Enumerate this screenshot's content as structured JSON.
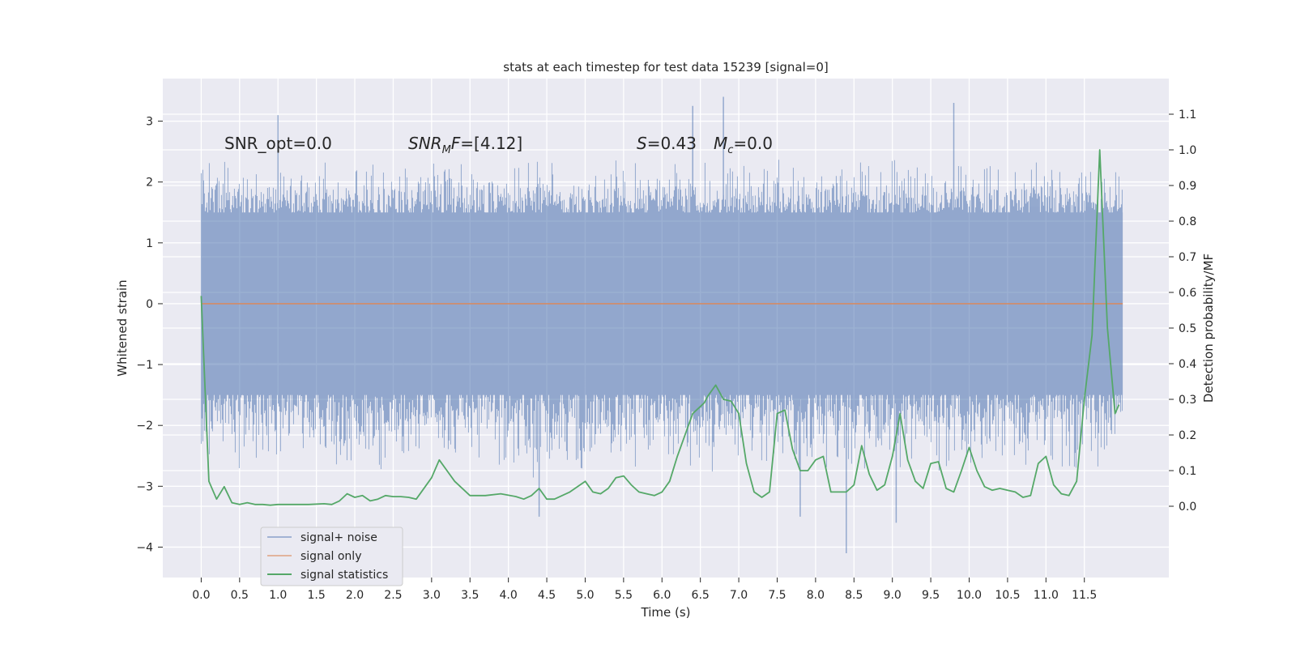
{
  "chart_data": {
    "type": "line",
    "title": "stats at each timestep for test data 15239 [signal=0]",
    "xlabel": "Time (s)",
    "ylabel": "Whitened strain",
    "ylabel_right": "Detection probability/MF",
    "xlim": [
      -0.5,
      12.6
    ],
    "ylim": [
      -4.5,
      3.7
    ],
    "ylim_right": [
      -0.2,
      1.2
    ],
    "x_ticks": [
      "0.0",
      "0.5",
      "1.0",
      "1.5",
      "2.0",
      "2.5",
      "3.0",
      "3.5",
      "4.0",
      "4.5",
      "5.0",
      "5.5",
      "6.0",
      "6.5",
      "7.0",
      "7.5",
      "8.0",
      "8.5",
      "9.0",
      "9.5",
      "10.0",
      "10.5",
      "11.0",
      "11.5"
    ],
    "y_ticks": [
      "3",
      "2",
      "1",
      "0",
      "−1",
      "−2",
      "−3",
      "−4"
    ],
    "y_ticks_right": [
      "1.1",
      "1.0",
      "0.9",
      "0.8",
      "0.7",
      "0.6",
      "0.5",
      "0.4",
      "0.3",
      "0.2",
      "0.1",
      "0.0"
    ],
    "grid": true,
    "legend_position": "lower-left",
    "annotations": [
      {
        "text": "SNR_opt=0.0",
        "italic": false
      },
      {
        "text": "SNR_MF=[4.12]",
        "italic": true
      },
      {
        "text": "S=0.43",
        "italic": false
      },
      {
        "text": "M_c=0.0",
        "italic": false
      }
    ],
    "series": [
      {
        "name": "signal+ noise",
        "color": "#4c72b0",
        "axis": "left",
        "style": "dense noise band",
        "x_range": [
          0.0,
          12.0
        ],
        "typical_range": [
          -1.5,
          1.5
        ],
        "envelope_range": [
          -2.9,
          2.4
        ],
        "extreme_peaks": [
          [
            1.0,
            3.1
          ],
          [
            6.8,
            3.4
          ],
          [
            6.4,
            3.25
          ],
          [
            9.8,
            3.3
          ],
          [
            8.4,
            -4.1
          ],
          [
            9.05,
            -3.6
          ],
          [
            4.4,
            -3.5
          ],
          [
            7.8,
            -3.5
          ]
        ]
      },
      {
        "name": "signal only",
        "color": "#dd8452",
        "axis": "left",
        "x": [
          0.0,
          12.0
        ],
        "values": [
          0,
          0
        ]
      },
      {
        "name": "signal statistics",
        "color": "#55a868",
        "axis": "right",
        "x": [
          0.0,
          0.1,
          0.2,
          0.3,
          0.4,
          0.5,
          0.6,
          0.7,
          0.8,
          0.9,
          1.0,
          1.2,
          1.4,
          1.6,
          1.7,
          1.8,
          1.9,
          2.0,
          2.1,
          2.2,
          2.3,
          2.4,
          2.5,
          2.6,
          2.7,
          2.8,
          3.0,
          3.1,
          3.2,
          3.3,
          3.5,
          3.7,
          3.9,
          4.1,
          4.2,
          4.3,
          4.4,
          4.5,
          4.6,
          4.7,
          4.8,
          5.0,
          5.1,
          5.2,
          5.3,
          5.4,
          5.5,
          5.6,
          5.7,
          5.8,
          5.9,
          6.0,
          6.1,
          6.2,
          6.3,
          6.4,
          6.5,
          6.55,
          6.6,
          6.7,
          6.8,
          6.9,
          7.0,
          7.1,
          7.2,
          7.3,
          7.4,
          7.5,
          7.6,
          7.7,
          7.8,
          7.9,
          8.0,
          8.1,
          8.2,
          8.4,
          8.5,
          8.6,
          8.7,
          8.8,
          8.9,
          9.0,
          9.1,
          9.2,
          9.3,
          9.4,
          9.5,
          9.6,
          9.7,
          9.8,
          9.9,
          10.0,
          10.1,
          10.2,
          10.3,
          10.4,
          10.5,
          10.6,
          10.7,
          10.8,
          10.9,
          11.0,
          11.1,
          11.2,
          11.3,
          11.4,
          11.5,
          11.6,
          11.7,
          11.8,
          11.9,
          11.95
        ],
        "values": [
          0.59,
          0.07,
          0.02,
          0.055,
          0.01,
          0.005,
          0.01,
          0.005,
          0.005,
          0.003,
          0.005,
          0.005,
          0.005,
          0.007,
          0.005,
          0.015,
          0.035,
          0.025,
          0.03,
          0.015,
          0.02,
          0.03,
          0.027,
          0.027,
          0.025,
          0.02,
          0.08,
          0.13,
          0.1,
          0.07,
          0.03,
          0.03,
          0.035,
          0.027,
          0.02,
          0.03,
          0.05,
          0.02,
          0.02,
          0.03,
          0.04,
          0.07,
          0.04,
          0.035,
          0.05,
          0.08,
          0.085,
          0.06,
          0.04,
          0.035,
          0.03,
          0.04,
          0.07,
          0.14,
          0.2,
          0.26,
          0.28,
          0.29,
          0.31,
          0.34,
          0.3,
          0.295,
          0.26,
          0.12,
          0.04,
          0.025,
          0.04,
          0.26,
          0.27,
          0.16,
          0.1,
          0.1,
          0.13,
          0.14,
          0.04,
          0.04,
          0.06,
          0.17,
          0.09,
          0.045,
          0.06,
          0.14,
          0.26,
          0.13,
          0.07,
          0.05,
          0.12,
          0.125,
          0.05,
          0.04,
          0.1,
          0.165,
          0.1,
          0.055,
          0.045,
          0.05,
          0.045,
          0.04,
          0.025,
          0.03,
          0.12,
          0.14,
          0.06,
          0.035,
          0.03,
          0.07,
          0.3,
          0.48,
          1.0,
          0.5,
          0.26,
          0.285
        ]
      }
    ]
  }
}
